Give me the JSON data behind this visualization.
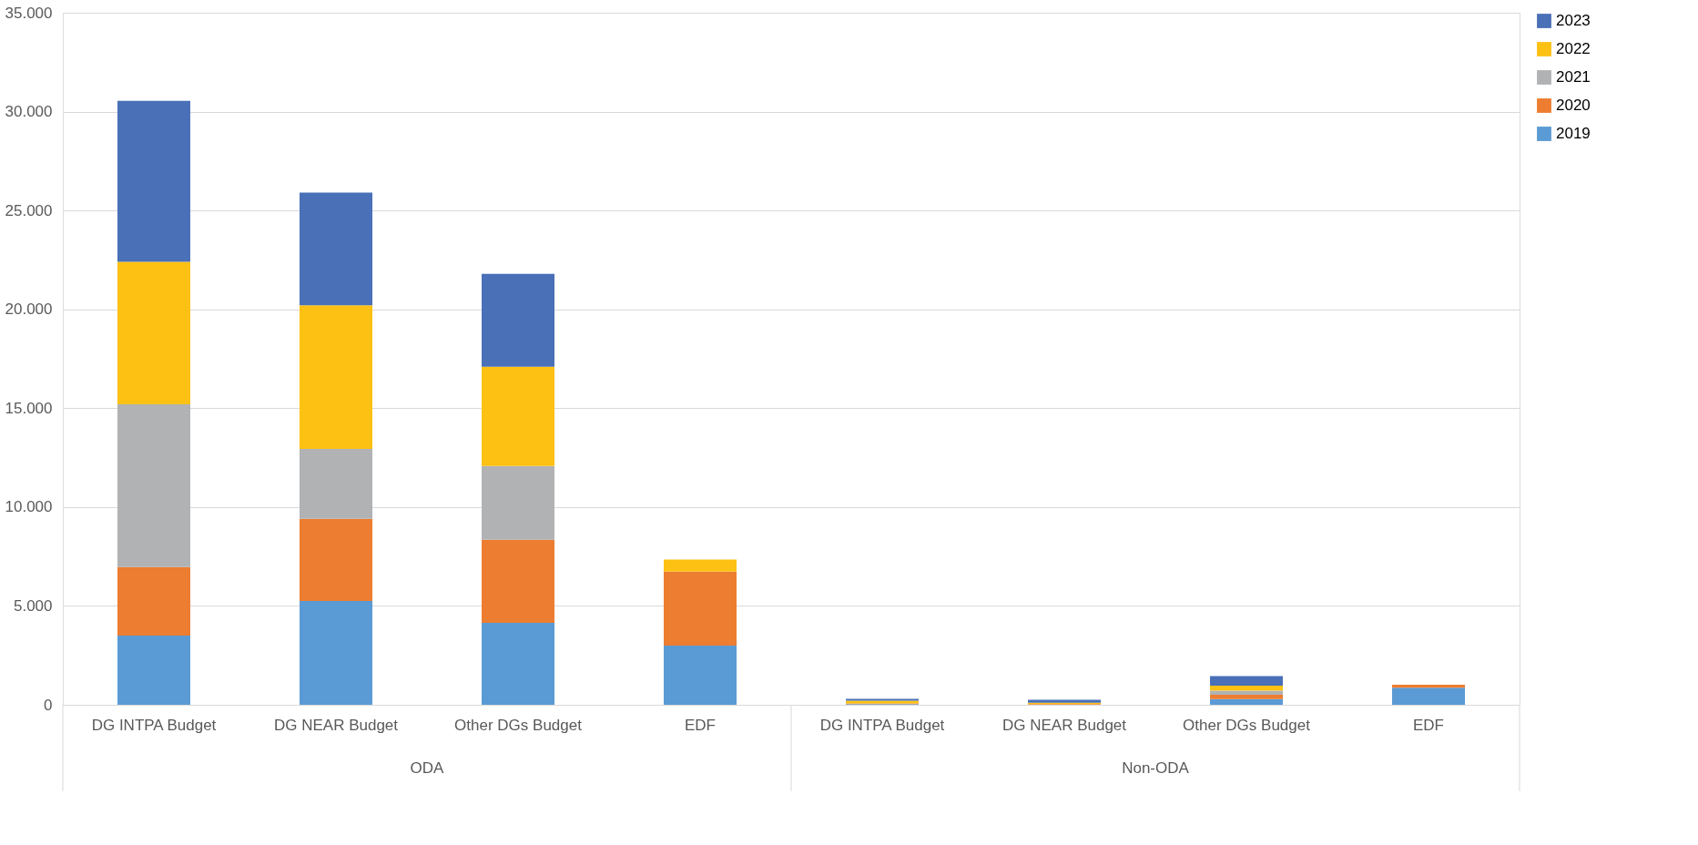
{
  "chart_data": {
    "type": "bar",
    "stacked": true,
    "categories": [
      "DG INTPA Budget",
      "DG NEAR Budget",
      "Other DGs Budget",
      "EDF",
      "DG INTPA Budget",
      "DG NEAR Budget",
      "Other DGs Budget",
      "EDF"
    ],
    "series": [
      {
        "name": "2019",
        "color": "#5b9bd5",
        "values": [
          3500,
          5250,
          4140,
          2990,
          30,
          null,
          290,
          860
        ]
      },
      {
        "name": "2020",
        "color": "#ed7d31",
        "values": [
          3470,
          4160,
          4210,
          3750,
          40,
          30,
          220,
          150
        ]
      },
      {
        "name": "2021",
        "color": "#b1b2b4",
        "values": [
          8230,
          3530,
          3730,
          0,
          null,
          null,
          200,
          0
        ]
      },
      {
        "name": "2022",
        "color": "#fdc114",
        "values": [
          7200,
          7260,
          5020,
          610,
          140,
          70,
          260,
          0
        ]
      },
      {
        "name": "2023",
        "color": "#4a70b7",
        "values": [
          8150,
          5700,
          4690,
          0,
          90,
          150,
          480,
          0
        ]
      }
    ],
    "ylim": [
      0,
      35000
    ],
    "yticks": [
      {
        "value": 0,
        "label": "0"
      },
      {
        "value": 5000,
        "label": "5.000"
      },
      {
        "value": 10000,
        "label": "10.000"
      },
      {
        "value": 15000,
        "label": "15.000"
      },
      {
        "value": 20000,
        "label": "20.000"
      },
      {
        "value": 25000,
        "label": "25.000"
      },
      {
        "value": 30000,
        "label": "30.000"
      },
      {
        "value": 35000,
        "label": "35.000"
      }
    ],
    "grid": "y",
    "legend": "right",
    "annotations": [
      "ODA",
      "Non-ODA"
    ]
  }
}
